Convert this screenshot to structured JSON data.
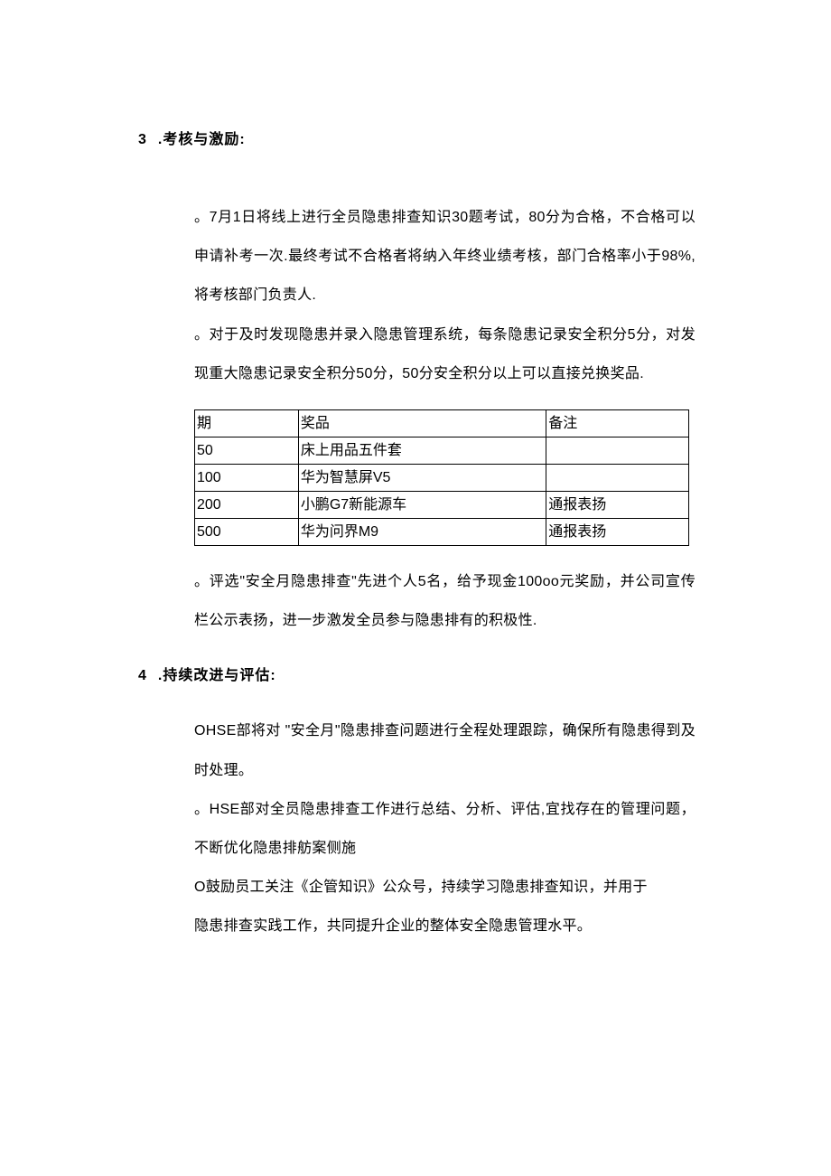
{
  "section3": {
    "number": "3",
    "title": ".考核与激励:",
    "para1": "。7月1日将线上进行全员隐患排查知识30题考试，80分为合格，不合格可以申请补考一次.最终考试不合格者将纳入年终业绩考核，部门合格率小于98%,将考核部门负责人.",
    "para2": "。对于及时发现隐患并录入隐患管理系统，每条隐患记录安全积分5分，对发现重大隐患记录安全积分50分，50分安全积分以上可以直接兑换奖品.",
    "table": {
      "headers": [
        "期",
        "奖品",
        "备注"
      ],
      "rows": [
        [
          "50",
          "床上用品五件套",
          ""
        ],
        [
          "100",
          "华为智慧屏V5",
          ""
        ],
        [
          "200",
          "小鹏G7新能源车",
          "通报表扬"
        ],
        [
          "500",
          "华为问界M9",
          "通报表扬"
        ]
      ]
    },
    "para3": "。评选\"安全月隐患排查\"先进个人5名，给予现金100oo元奖励，并公司宣传栏公示表扬，进一步激发全员参与隐患排有的积极性."
  },
  "section4": {
    "number": "4",
    "title_prefix": ".",
    "title_bold": "持续改进与评估:",
    "para1": "OHSE部将对 \"安全月\"隐患排查问题进行全程处理跟踪，确保所有隐患得到及时处理。",
    "para2": "。HSE部对全员隐患排查工作进行总结、分析、评估,宜找存在的管理问题，不断优化隐患排舫案侧施",
    "para3": "O鼓励员工关注《企管知识》公众号，持续学习隐患排查知识，并用于",
    "para4": "隐患排查实践工作，共同提升企业的整体安全隐患管理水平。"
  }
}
